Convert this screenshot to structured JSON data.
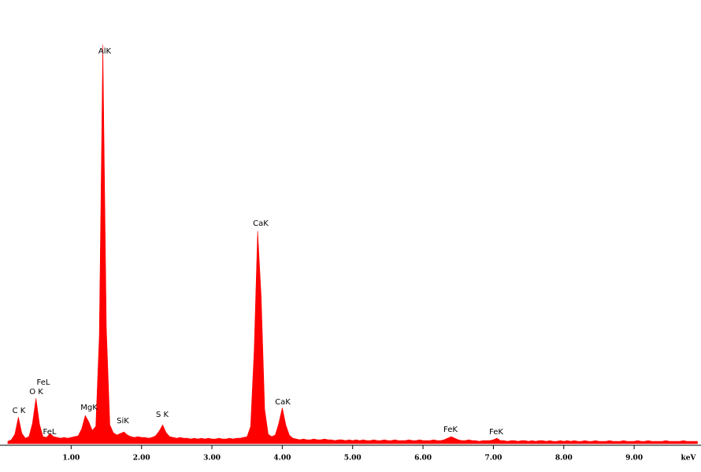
{
  "chart_data": {
    "type": "area",
    "color": "#ff0000",
    "x_label": "keV",
    "x": [
      0.1,
      0.15,
      0.2,
      0.25,
      0.3,
      0.35,
      0.4,
      0.45,
      0.5,
      0.55,
      0.6,
      0.65,
      0.7,
      0.75,
      0.8,
      0.85,
      0.9,
      0.95,
      1,
      1.05,
      1.1,
      1.15,
      1.2,
      1.25,
      1.3,
      1.35,
      1.4,
      1.45,
      1.5,
      1.55,
      1.6,
      1.65,
      1.7,
      1.75,
      1.8,
      1.85,
      1.9,
      1.95,
      2,
      2.05,
      2.1,
      2.15,
      2.2,
      2.25,
      2.3,
      2.35,
      2.4,
      2.45,
      2.5,
      2.55,
      2.6,
      2.65,
      2.7,
      2.75,
      2.8,
      2.85,
      2.9,
      2.95,
      3,
      3.05,
      3.1,
      3.15,
      3.2,
      3.25,
      3.3,
      3.35,
      3.4,
      3.45,
      3.5,
      3.55,
      3.6,
      3.65,
      3.7,
      3.75,
      3.8,
      3.85,
      3.9,
      3.95,
      4,
      4.05,
      4.1,
      4.15,
      4.2,
      4.25,
      4.3,
      4.35,
      4.4,
      4.45,
      4.5,
      4.55,
      4.6,
      4.65,
      4.7,
      4.75,
      4.8,
      4.85,
      4.9,
      4.95,
      5,
      5.05,
      5.1,
      5.15,
      5.2,
      5.25,
      5.3,
      5.35,
      5.4,
      5.45,
      5.5,
      5.55,
      5.6,
      5.65,
      5.7,
      5.75,
      5.8,
      5.85,
      5.9,
      5.95,
      6,
      6.05,
      6.1,
      6.15,
      6.2,
      6.25,
      6.3,
      6.35,
      6.4,
      6.45,
      6.5,
      6.55,
      6.6,
      6.65,
      6.7,
      6.75,
      6.8,
      6.85,
      6.9,
      6.95,
      7,
      7.05,
      7.1,
      7.15,
      7.2,
      7.25,
      7.3,
      7.35,
      7.4,
      7.45,
      7.5,
      7.55,
      7.6,
      7.65,
      7.7,
      7.75,
      7.8,
      7.85,
      7.9,
      7.95,
      8,
      8.05,
      8.1,
      8.15,
      8.2,
      8.25,
      8.3,
      8.35,
      8.4,
      8.45,
      8.5,
      8.55,
      8.6,
      8.65,
      8.7,
      8.75,
      8.8,
      8.85,
      8.9,
      8.95,
      9,
      9.05,
      9.1,
      9.15,
      9.2,
      9.25,
      9.3,
      9.35,
      9.4,
      9.45,
      9.5,
      9.55,
      9.6,
      9.65,
      9.7,
      9.75,
      9.8,
      9.85,
      9.9
    ],
    "values": [
      3,
      5,
      12,
      34,
      13,
      7,
      9,
      26,
      58,
      25,
      9,
      8,
      13,
      9,
      8,
      7,
      8,
      7,
      8,
      9,
      10,
      19,
      36,
      28,
      17,
      22,
      138,
      510,
      148,
      24,
      14,
      11,
      13,
      15,
      11,
      9,
      8,
      9,
      8,
      8,
      7,
      8,
      10,
      16,
      24,
      14,
      9,
      8,
      7,
      8,
      7,
      7,
      6,
      7,
      6,
      7,
      6,
      7,
      6,
      6,
      7,
      6,
      6,
      7,
      6,
      7,
      7,
      8,
      9,
      22,
      118,
      272,
      188,
      44,
      12,
      9,
      11,
      26,
      46,
      24,
      11,
      7,
      6,
      5,
      6,
      5,
      5,
      6,
      5,
      5,
      6,
      5,
      5,
      4,
      5,
      5,
      4,
      5,
      4,
      5,
      4,
      5,
      4,
      4,
      5,
      4,
      4,
      5,
      4,
      4,
      5,
      4,
      4,
      4,
      5,
      4,
      4,
      5,
      4,
      4,
      4,
      5,
      4,
      4,
      5,
      7,
      9,
      7,
      5,
      4,
      4,
      5,
      4,
      4,
      3,
      4,
      4,
      4,
      5,
      7,
      4,
      4,
      3,
      4,
      4,
      3,
      4,
      4,
      3,
      4,
      3,
      4,
      4,
      3,
      4,
      3,
      3,
      4,
      3,
      4,
      3,
      4,
      3,
      3,
      4,
      3,
      3,
      4,
      3,
      3,
      3,
      4,
      3,
      3,
      3,
      4,
      3,
      3,
      3,
      4,
      3,
      3,
      4,
      3,
      3,
      3,
      3,
      4,
      3,
      3,
      3,
      3,
      4,
      3,
      3,
      3,
      3
    ],
    "xlim": [
      0,
      9.95
    ],
    "ylim": [
      0,
      520
    ],
    "xticks": [
      {
        "value": 1,
        "label": "1.00"
      },
      {
        "value": 2,
        "label": "2.00"
      },
      {
        "value": 3,
        "label": "3.00"
      },
      {
        "value": 4,
        "label": "4.00"
      },
      {
        "value": 5,
        "label": "5.00"
      },
      {
        "value": 6,
        "label": "6.00"
      },
      {
        "value": 7,
        "label": "7.00"
      },
      {
        "value": 8,
        "label": "8.00"
      },
      {
        "value": 9,
        "label": "9.00"
      }
    ],
    "annotations": [
      "AlK",
      "CaK",
      "C K",
      "O K",
      "FeL",
      "FeL",
      "MgK",
      "SiK",
      "S K",
      "CaK",
      "FeK",
      "FeK"
    ]
  }
}
